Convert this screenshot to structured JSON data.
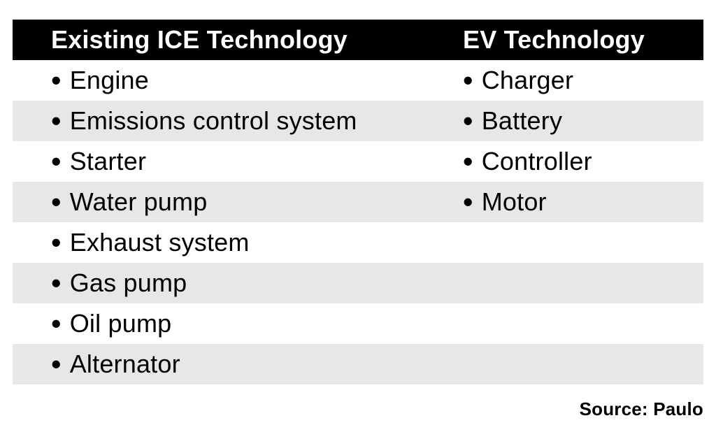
{
  "chart_data": {
    "type": "table",
    "title": "",
    "columns": [
      "Existing ICE Technology",
      "EV Technology"
    ],
    "rows": [
      [
        "Engine",
        "Charger"
      ],
      [
        "Emissions control system",
        "Battery"
      ],
      [
        "Starter",
        "Controller"
      ],
      [
        "Water pump",
        "Motor"
      ],
      [
        "Exhaust system",
        ""
      ],
      [
        "Gas pump",
        ""
      ],
      [
        "Oil pump",
        ""
      ],
      [
        "Alternator",
        ""
      ]
    ],
    "source": "Source: Paulo",
    "layout": {
      "list_style": "bullet",
      "row_striping": "alternating, first data row white",
      "legend_position": "none",
      "grid": false
    }
  },
  "bullet": "•",
  "colors": {
    "header_bg": "#000000",
    "header_text": "#ffffff",
    "row_bg": "#ffffff",
    "row_alt_bg": "#e6e7e9",
    "text": "#000000",
    "background": "#ffffff"
  }
}
